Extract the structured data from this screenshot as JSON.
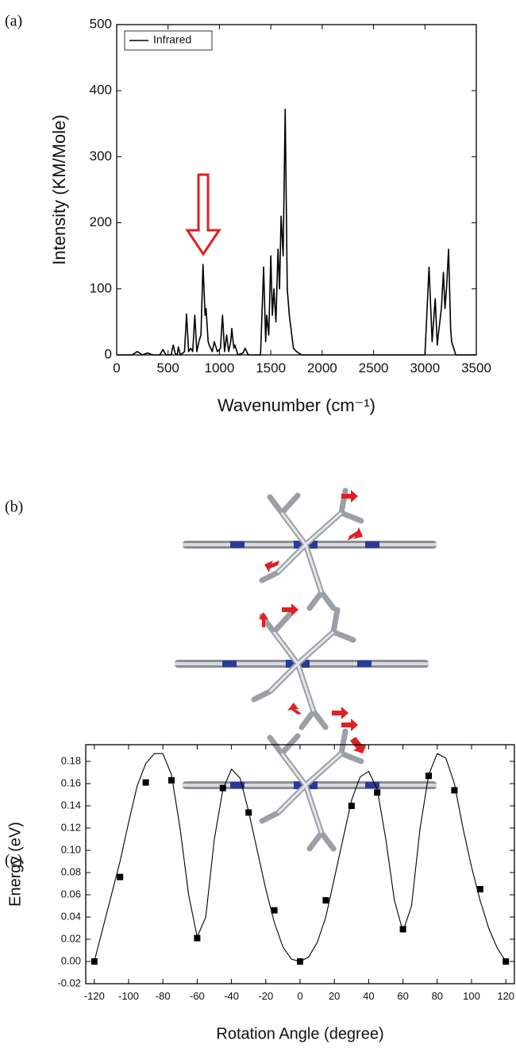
{
  "chart_data": [
    {
      "type": "line",
      "panel_label": "(a)",
      "x_label": "Wavenumber (cm⁻¹)",
      "y_label": "Intensity (KM/Mole)",
      "xlim": [
        0,
        3500
      ],
      "xticks": [
        0,
        500,
        1000,
        1500,
        2000,
        2500,
        3000,
        3500
      ],
      "ylim": [
        0,
        500
      ],
      "yticks": [
        0,
        100,
        200,
        300,
        400,
        500
      ],
      "legend": "upper left",
      "series": [
        {
          "name": "Infrared",
          "color": "#000000",
          "x": [
            0,
            150,
            200,
            250,
            300,
            350,
            420,
            450,
            480,
            530,
            550,
            570,
            590,
            600,
            620,
            660,
            680,
            700,
            720,
            740,
            760,
            780,
            800,
            820,
            840,
            860,
            870,
            890,
            900,
            930,
            950,
            980,
            1010,
            1030,
            1050,
            1070,
            1090,
            1110,
            1120,
            1140,
            1150,
            1180,
            1230,
            1250,
            1280,
            1400,
            1430,
            1450,
            1460,
            1480,
            1500,
            1515,
            1530,
            1550,
            1570,
            1585,
            1600,
            1620,
            1640,
            1660,
            1680,
            1720,
            1750,
            1800,
            3000,
            3040,
            3070,
            3100,
            3120,
            3130,
            3160,
            3180,
            3195,
            3210,
            3230,
            3250,
            3260,
            3300,
            3500
          ],
          "values": [
            0,
            0,
            5,
            0,
            3,
            0,
            0,
            8,
            0,
            0,
            15,
            2,
            0,
            12,
            0,
            5,
            62,
            5,
            10,
            5,
            60,
            5,
            20,
            30,
            137,
            60,
            70,
            20,
            15,
            5,
            20,
            5,
            10,
            60,
            5,
            30,
            5,
            20,
            40,
            10,
            15,
            0,
            3,
            10,
            0,
            0,
            133,
            20,
            60,
            30,
            150,
            60,
            100,
            50,
            160,
            100,
            210,
            150,
            372,
            100,
            60,
            10,
            5,
            0,
            0,
            133,
            20,
            85,
            15,
            30,
            70,
            125,
            70,
            100,
            160,
            40,
            20,
            0,
            0
          ]
        }
      ]
    },
    {
      "type": "scatter",
      "panel_label": "(c)",
      "x_label": "Rotation Angle (degree)",
      "y_label": "Energy (eV)",
      "xlim": [
        -125,
        125
      ],
      "xticks": [
        -120,
        -100,
        -80,
        -60,
        -40,
        -20,
        0,
        20,
        40,
        60,
        80,
        100,
        120
      ],
      "ylim": [
        -0.02,
        0.195
      ],
      "yticks": [
        {
          "value": -0.02,
          "label": "-0.02"
        },
        {
          "value": 0,
          "label": "0.00"
        },
        {
          "value": 0.02,
          "label": "0.02"
        },
        {
          "value": 0.04,
          "label": "0.04"
        },
        {
          "value": 0.06,
          "label": "0.06"
        },
        {
          "value": 0.08,
          "label": "0.08"
        },
        {
          "value": 0.1,
          "label": "0.10"
        },
        {
          "value": 0.12,
          "label": "0.12"
        },
        {
          "value": 0.14,
          "label": "0.14"
        },
        {
          "value": 0.16,
          "label": "0.16"
        },
        {
          "value": 0.18,
          "label": "0.18"
        }
      ],
      "color": "#000000",
      "x": [
        -120,
        -105,
        -90,
        -75,
        -60,
        -45,
        -30,
        -15,
        0,
        15,
        30,
        45,
        60,
        75,
        90,
        105,
        120
      ],
      "values": [
        0,
        0.076,
        0.161,
        0.163,
        0.021,
        0.156,
        0.134,
        0.046,
        0,
        0.055,
        0.14,
        0.152,
        0.029,
        0.167,
        0.154,
        0.065,
        0
      ],
      "fit": {
        "x": [
          -120,
          -115,
          -110,
          -105,
          -100,
          -95,
          -90,
          -85,
          -80,
          -75,
          -70,
          -65,
          -60,
          -55,
          -50,
          -45,
          -40,
          -35,
          -30,
          -25,
          -20,
          -15,
          -10,
          -5,
          0,
          5,
          10,
          15,
          20,
          25,
          30,
          35,
          40,
          45,
          50,
          55,
          60,
          65,
          70,
          75,
          80,
          85,
          90,
          95,
          100,
          105,
          110,
          115,
          120
        ],
        "values": [
          0,
          0.03,
          0.06,
          0.09,
          0.125,
          0.158,
          0.178,
          0.187,
          0.187,
          0.168,
          0.12,
          0.06,
          0.022,
          0.04,
          0.11,
          0.155,
          0.173,
          0.165,
          0.135,
          0.1,
          0.065,
          0.035,
          0.013,
          0.002,
          0,
          0.004,
          0.017,
          0.04,
          0.075,
          0.11,
          0.145,
          0.166,
          0.171,
          0.155,
          0.11,
          0.055,
          0.027,
          0.05,
          0.12,
          0.168,
          0.187,
          0.183,
          0.16,
          0.12,
          0.085,
          0.055,
          0.03,
          0.012,
          0
        ]
      }
    }
  ],
  "figure_b": {
    "panel_label": "(b)"
  }
}
